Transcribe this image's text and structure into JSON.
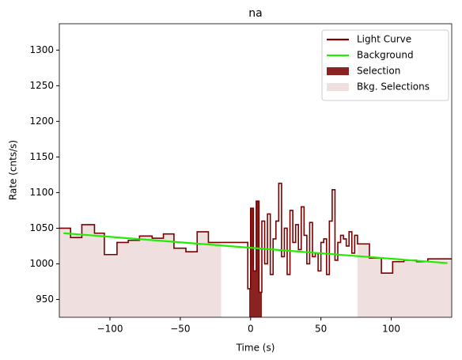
{
  "chart_data": {
    "type": "step",
    "title": "na",
    "xlabel": "Time (s)",
    "ylabel": "Rate (cnts/s)",
    "xlim": [
      -136,
      143
    ],
    "ylim": [
      925,
      1337
    ],
    "xticks": [
      {
        "value": -100,
        "label": "−100"
      },
      {
        "value": -50,
        "label": "−50"
      },
      0,
      50,
      100
    ],
    "yticks": [
      950,
      1000,
      1050,
      1100,
      1150,
      1200,
      1250,
      1300
    ],
    "legend": "upper right",
    "series": [
      {
        "name": "Light Curve",
        "color": "#7a0000",
        "x": [
          -136,
          -128,
          -120,
          -111,
          -104,
          -95,
          -87,
          -79,
          -70,
          -62,
          -54.5,
          -46,
          -38,
          -30,
          -21,
          -2,
          0,
          2,
          4,
          6,
          8,
          10,
          12,
          14,
          16,
          18,
          20,
          22,
          24,
          26,
          28,
          30,
          32,
          34,
          36,
          38,
          40,
          42,
          44,
          46,
          48,
          50,
          52,
          54,
          56,
          58,
          60,
          62,
          64,
          66,
          68,
          70,
          72,
          74,
          76,
          84.5,
          93,
          101,
          109,
          118,
          126,
          143
        ],
        "values": [
          1050,
          1037,
          1055,
          1043,
          1013,
          1030,
          1033,
          1039,
          1036,
          1042,
          1022,
          1017,
          1045,
          1030,
          1030,
          965,
          1078,
          990,
          1088,
          960,
          1060,
          1000,
          1070,
          985,
          1035,
          1060,
          1113,
          1010,
          1050,
          985,
          1075,
          1030,
          1055,
          1020,
          1080,
          1040,
          1000,
          1058,
          1010,
          1015,
          990,
          1030,
          1035,
          985,
          1060,
          1104,
          1005,
          1030,
          1040,
          1035,
          1025,
          1045,
          1015,
          1040,
          1028,
          1008,
          987,
          1003,
          1005,
          1003,
          1007,
          1007
        ]
      },
      {
        "name": "Background",
        "color": "#22ee00",
        "x": [
          -133,
          140
        ],
        "values": [
          1043,
          1001
        ]
      }
    ],
    "selection": {
      "name": "Selection",
      "color": "#8b2222",
      "range": [
        -1,
        8
      ]
    },
    "bkg_selections": {
      "name": "Bkg. Selections",
      "color": "#f0dfdf",
      "ranges": [
        [
          -136,
          -21
        ],
        [
          76,
          143
        ]
      ]
    }
  }
}
